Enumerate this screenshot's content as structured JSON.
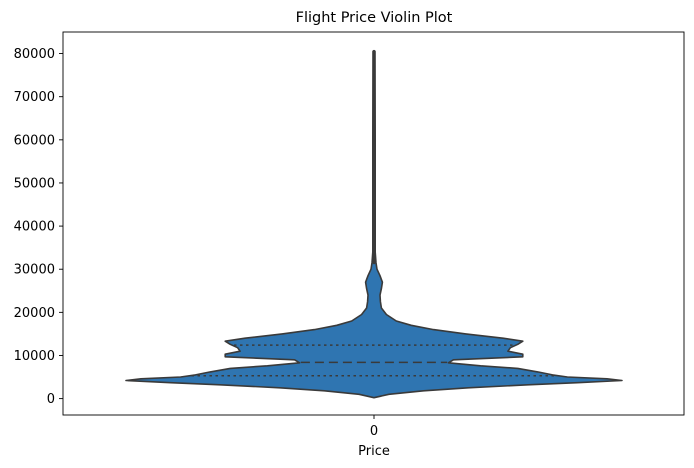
{
  "chart_data": {
    "type": "violin",
    "title": "Flight Price Violin Plot",
    "xlabel": "Price",
    "ylabel": "",
    "categories": [
      "0"
    ],
    "ylim": [
      -3800,
      85000
    ],
    "yticks": [
      0,
      10000,
      20000,
      30000,
      40000,
      50000,
      60000,
      70000,
      80000
    ],
    "ytick_labels": [
      "0",
      "10000",
      "20000",
      "30000",
      "40000",
      "50000",
      "60000",
      "70000",
      "80000"
    ],
    "quartiles": {
      "q1": 5300,
      "median": 8400,
      "q3": 12400
    },
    "range": {
      "min": 200,
      "max": 80500
    },
    "inner": "quartile",
    "fill_color": "#2f75b1",
    "line_color": "#3a3a3a",
    "grid": false,
    "density_profile": [
      [
        200,
        0.0
      ],
      [
        1000,
        0.06
      ],
      [
        1800,
        0.2
      ],
      [
        2500,
        0.38
      ],
      [
        3200,
        0.62
      ],
      [
        3700,
        0.82
      ],
      [
        4200,
        1.0
      ],
      [
        4600,
        0.94
      ],
      [
        5000,
        0.78
      ],
      [
        5500,
        0.72
      ],
      [
        6200,
        0.66
      ],
      [
        7000,
        0.58
      ],
      [
        7600,
        0.43
      ],
      [
        8300,
        0.3
      ],
      [
        9000,
        0.32
      ],
      [
        9700,
        0.6
      ],
      [
        10300,
        0.6
      ],
      [
        11000,
        0.54
      ],
      [
        11800,
        0.55
      ],
      [
        12600,
        0.58
      ],
      [
        13300,
        0.6
      ],
      [
        14000,
        0.52
      ],
      [
        15000,
        0.37
      ],
      [
        16000,
        0.24
      ],
      [
        17000,
        0.15
      ],
      [
        18000,
        0.09
      ],
      [
        19500,
        0.05
      ],
      [
        21000,
        0.03
      ],
      [
        22500,
        0.026
      ],
      [
        24000,
        0.024
      ],
      [
        25500,
        0.03
      ],
      [
        27000,
        0.034
      ],
      [
        28500,
        0.024
      ],
      [
        30000,
        0.012
      ],
      [
        31500,
        0.008
      ],
      [
        34000,
        0.005
      ],
      [
        45000,
        0.005
      ],
      [
        60000,
        0.005
      ],
      [
        80500,
        0.004
      ]
    ]
  }
}
